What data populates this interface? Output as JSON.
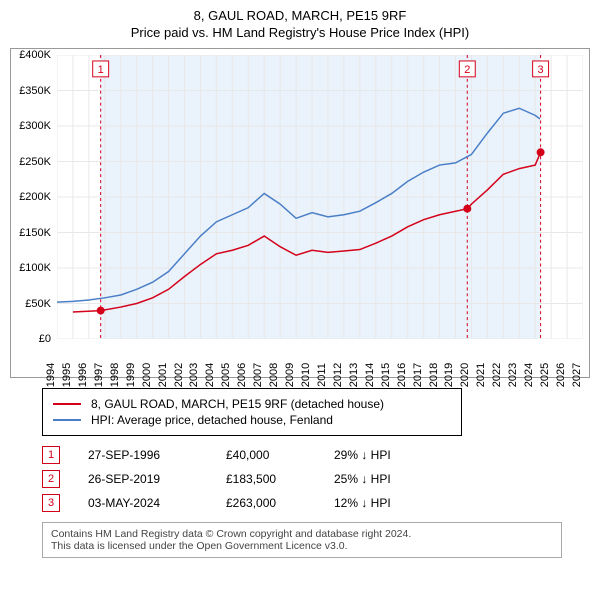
{
  "title_line1": "8, GAUL ROAD, MARCH, PE15 9RF",
  "title_line2": "Price paid vs. HM Land Registry's House Price Index (HPI)",
  "chart": {
    "type": "line",
    "background_color": "#ffffff",
    "highlight_band_color": "#eaf2fb",
    "grid_color": "#e8e8e8",
    "border_color": "#999999",
    "x": {
      "years": [
        1994,
        1995,
        1996,
        1997,
        1998,
        1999,
        2000,
        2001,
        2002,
        2003,
        2004,
        2005,
        2006,
        2007,
        2008,
        2009,
        2010,
        2011,
        2012,
        2013,
        2014,
        2015,
        2016,
        2017,
        2018,
        2019,
        2020,
        2021,
        2022,
        2023,
        2024,
        2025,
        2026,
        2027
      ]
    },
    "y": {
      "ticks": [
        0,
        50000,
        100000,
        150000,
        200000,
        250000,
        300000,
        350000,
        400000
      ],
      "labels": [
        "£0",
        "£50K",
        "£100K",
        "£150K",
        "£200K",
        "£250K",
        "£300K",
        "£350K",
        "£400K"
      ],
      "max": 400000
    },
    "series": [
      {
        "name": "8, GAUL ROAD, MARCH, PE15 9RF (detached house)",
        "color": "#d4001a",
        "line_width": 1.5,
        "points": [
          [
            1995,
            38000
          ],
          [
            1996.74,
            40000
          ],
          [
            1998,
            45000
          ],
          [
            1999,
            50000
          ],
          [
            2000,
            58000
          ],
          [
            2001,
            70000
          ],
          [
            2002,
            88000
          ],
          [
            2003,
            105000
          ],
          [
            2004,
            120000
          ],
          [
            2005,
            125000
          ],
          [
            2006,
            132000
          ],
          [
            2007,
            145000
          ],
          [
            2008,
            130000
          ],
          [
            2009,
            118000
          ],
          [
            2010,
            125000
          ],
          [
            2011,
            122000
          ],
          [
            2012,
            124000
          ],
          [
            2013,
            126000
          ],
          [
            2014,
            135000
          ],
          [
            2015,
            145000
          ],
          [
            2016,
            158000
          ],
          [
            2017,
            168000
          ],
          [
            2018,
            175000
          ],
          [
            2019.74,
            183500
          ],
          [
            2020,
            190000
          ],
          [
            2021,
            210000
          ],
          [
            2022,
            232000
          ],
          [
            2023,
            240000
          ],
          [
            2024,
            245000
          ],
          [
            2024.34,
            263000
          ]
        ]
      },
      {
        "name": "HPI: Average price, detached house, Fenland",
        "color": "#4a7fc7",
        "line_width": 1.5,
        "points": [
          [
            1994,
            52000
          ],
          [
            1995,
            53000
          ],
          [
            1996,
            55000
          ],
          [
            1997,
            58000
          ],
          [
            1998,
            62000
          ],
          [
            1999,
            70000
          ],
          [
            2000,
            80000
          ],
          [
            2001,
            95000
          ],
          [
            2002,
            120000
          ],
          [
            2003,
            145000
          ],
          [
            2004,
            165000
          ],
          [
            2005,
            175000
          ],
          [
            2006,
            185000
          ],
          [
            2007,
            205000
          ],
          [
            2008,
            190000
          ],
          [
            2009,
            170000
          ],
          [
            2010,
            178000
          ],
          [
            2011,
            172000
          ],
          [
            2012,
            175000
          ],
          [
            2013,
            180000
          ],
          [
            2014,
            192000
          ],
          [
            2015,
            205000
          ],
          [
            2016,
            222000
          ],
          [
            2017,
            235000
          ],
          [
            2018,
            245000
          ],
          [
            2019,
            248000
          ],
          [
            2020,
            260000
          ],
          [
            2021,
            290000
          ],
          [
            2022,
            318000
          ],
          [
            2023,
            325000
          ],
          [
            2024,
            315000
          ],
          [
            2024.3,
            310000
          ]
        ]
      }
    ],
    "sale_markers": [
      {
        "n": "1",
        "year": 1996.74,
        "price": 40000,
        "vline_color": "#d4001a"
      },
      {
        "n": "2",
        "year": 2019.74,
        "price": 183500,
        "vline_color": "#d4001a"
      },
      {
        "n": "3",
        "year": 2024.34,
        "price": 263000,
        "vline_color": "#d4001a"
      }
    ],
    "highlight_band": {
      "start": 1996.74,
      "end": 2024.34
    },
    "marker_box_border": "#d4001a",
    "marker_box_text_color": "#d4001a",
    "marker_dot_color": "#d4001a",
    "marker_dot_radius": 4
  },
  "legend": {
    "items": [
      {
        "color": "#d4001a",
        "label": "8, GAUL ROAD, MARCH, PE15 9RF (detached house)"
      },
      {
        "color": "#4a7fc7",
        "label": "HPI: Average price, detached house, Fenland"
      }
    ]
  },
  "sales": [
    {
      "n": "1",
      "date": "27-SEP-1996",
      "price": "£40,000",
      "diff": "29% ↓ HPI"
    },
    {
      "n": "2",
      "date": "26-SEP-2019",
      "price": "£183,500",
      "diff": "25% ↓ HPI"
    },
    {
      "n": "3",
      "date": "03-MAY-2024",
      "price": "£263,000",
      "diff": "12% ↓ HPI"
    }
  ],
  "footer_line1": "Contains HM Land Registry data © Crown copyright and database right 2024.",
  "footer_line2": "This data is licensed under the Open Government Licence v3.0.",
  "colors": {
    "marker_border": "#d4001a",
    "marker_text": "#d4001a"
  }
}
